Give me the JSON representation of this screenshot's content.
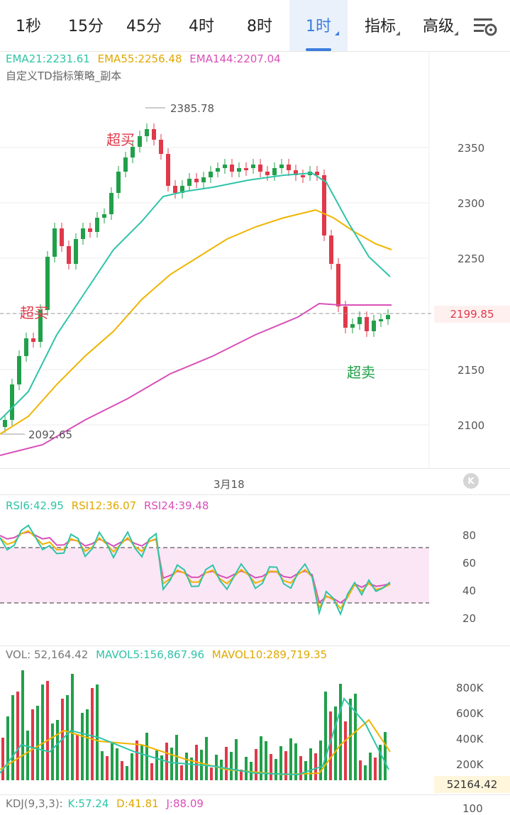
{
  "tabs": [
    "1秒",
    "15分",
    "45分",
    "4时",
    "8时",
    "1时"
  ],
  "active_tab": "1时",
  "menus": [
    "指标",
    "高级"
  ],
  "main_legend": {
    "ema21": "EMA21:2231.61",
    "ema55": "EMA55:2256.48",
    "ema144": "EMA144:2207.04"
  },
  "strategy_label": "自定义TD指标策略_副本",
  "annotations": {
    "overbought_1": "超买",
    "overbought_2": "超买",
    "oversold": "超卖"
  },
  "high_label": "2385.78",
  "low_label": "2092.65",
  "price_axis": [
    "2350",
    "2300",
    "2250",
    "2200",
    "2150",
    "2100"
  ],
  "current_price": "2199.85",
  "date_label": "3月18",
  "rsi_legend": {
    "rsi6": "RSI6:42.95",
    "rsi12": "RSI12:36.07",
    "rsi24": "RSI24:39.48"
  },
  "rsi_axis": [
    "80",
    "60",
    "40",
    "20"
  ],
  "vol_legend": {
    "vol": "VOL: 52,164.42",
    "mavol5": "MAVOL5:156,867.96",
    "mavol10": "MAVOL10:289,719.35"
  },
  "vol_axis": [
    "800K",
    "600K",
    "400K",
    "200K"
  ],
  "current_volume": "52164.42",
  "kdj_legend": {
    "title": "KDJ(9,3,3):",
    "k": "K:57.24",
    "d": "D:41.81",
    "j": "J:88.09"
  },
  "kdj_axis_top": "100",
  "colors": {
    "up": "#21a04a",
    "down": "#e0394a",
    "ema21": "#2fc4a8",
    "ema55": "#f0b400",
    "ema144": "#d94fb8",
    "accent": "#3b7ddd"
  },
  "icons": [
    "triangle-indicator-icon",
    "chart-settings-icon",
    "collapse-k-icon"
  ]
}
